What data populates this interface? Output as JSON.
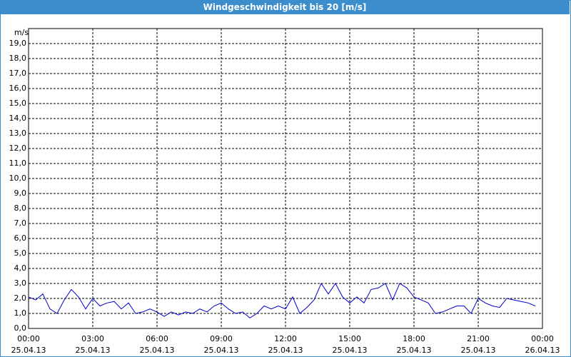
{
  "chart_data": {
    "type": "line",
    "title": "Windgeschwindigkeit bis 20 [m/s]",
    "y_label": "m/s",
    "x": [
      "2013-04-25T00:00",
      "2013-04-25T00:20",
      "2013-04-25T00:40",
      "2013-04-25T01:00",
      "2013-04-25T01:20",
      "2013-04-25T01:40",
      "2013-04-25T02:00",
      "2013-04-25T02:20",
      "2013-04-25T02:40",
      "2013-04-25T03:00",
      "2013-04-25T03:20",
      "2013-04-25T03:40",
      "2013-04-25T04:00",
      "2013-04-25T04:20",
      "2013-04-25T04:40",
      "2013-04-25T05:00",
      "2013-04-25T05:20",
      "2013-04-25T05:40",
      "2013-04-25T06:00",
      "2013-04-25T06:20",
      "2013-04-25T06:40",
      "2013-04-25T07:00",
      "2013-04-25T07:20",
      "2013-04-25T07:40",
      "2013-04-25T08:00",
      "2013-04-25T08:20",
      "2013-04-25T08:40",
      "2013-04-25T09:00",
      "2013-04-25T09:20",
      "2013-04-25T09:40",
      "2013-04-25T10:00",
      "2013-04-25T10:20",
      "2013-04-25T10:40",
      "2013-04-25T11:00",
      "2013-04-25T11:20",
      "2013-04-25T11:40",
      "2013-04-25T12:00",
      "2013-04-25T12:20",
      "2013-04-25T12:40",
      "2013-04-25T13:00",
      "2013-04-25T13:20",
      "2013-04-25T13:40",
      "2013-04-25T14:00",
      "2013-04-25T14:20",
      "2013-04-25T14:40",
      "2013-04-25T15:00",
      "2013-04-25T15:20",
      "2013-04-25T15:40",
      "2013-04-25T16:00",
      "2013-04-25T16:20",
      "2013-04-25T16:40",
      "2013-04-25T17:00",
      "2013-04-25T17:20",
      "2013-04-25T17:40",
      "2013-04-25T18:00",
      "2013-04-25T18:20",
      "2013-04-25T18:40",
      "2013-04-25T19:00",
      "2013-04-25T19:20",
      "2013-04-25T19:40",
      "2013-04-25T20:00",
      "2013-04-25T20:20",
      "2013-04-25T20:40",
      "2013-04-25T21:00",
      "2013-04-25T21:20",
      "2013-04-25T21:40",
      "2013-04-25T22:00",
      "2013-04-25T22:20",
      "2013-04-25T22:40",
      "2013-04-25T23:00",
      "2013-04-25T23:20",
      "2013-04-25T23:40"
    ],
    "series": [
      {
        "color": "#0000cc",
        "values": [
          2.1,
          1.9,
          2.3,
          1.3,
          1.0,
          1.9,
          2.6,
          2.1,
          1.3,
          2.0,
          1.5,
          1.7,
          1.8,
          1.3,
          1.7,
          1.0,
          1.1,
          1.3,
          1.1,
          0.8,
          1.1,
          0.9,
          1.1,
          1.0,
          1.3,
          1.1,
          1.5,
          1.7,
          1.3,
          1.0,
          1.1,
          0.7,
          1.0,
          1.5,
          1.3,
          1.5,
          1.3,
          2.1,
          1.0,
          1.4,
          1.9,
          3.0,
          2.3,
          3.0,
          2.1,
          1.7,
          2.1,
          1.7,
          2.6,
          2.7,
          3.0,
          1.9,
          3.0,
          2.7,
          2.1,
          1.9,
          1.7,
          1.0,
          1.1,
          1.3,
          1.5,
          1.5,
          1.0,
          2.0,
          1.7,
          1.5,
          1.4,
          2.0,
          1.9,
          1.8,
          1.7,
          1.5
        ]
      }
    ],
    "xlim": [
      "2013-04-25T00:00",
      "2013-04-26T00:00"
    ],
    "xticks": [
      {
        "value": "2013-04-25T00:00",
        "label": [
          "00:00",
          "25.04.13"
        ]
      },
      {
        "value": "2013-04-25T03:00",
        "label": [
          "03:00",
          "25.04.13"
        ]
      },
      {
        "value": "2013-04-25T06:00",
        "label": [
          "06:00",
          "25.04.13"
        ]
      },
      {
        "value": "2013-04-25T09:00",
        "label": [
          "09:00",
          "25.04.13"
        ]
      },
      {
        "value": "2013-04-25T12:00",
        "label": [
          "12:00",
          "25.04.13"
        ]
      },
      {
        "value": "2013-04-25T15:00",
        "label": [
          "15:00",
          "25.04.13"
        ]
      },
      {
        "value": "2013-04-25T18:00",
        "label": [
          "18:00",
          "25.04.13"
        ]
      },
      {
        "value": "2013-04-25T21:00",
        "label": [
          "21:00",
          "25.04.13"
        ]
      },
      {
        "value": "2013-04-26T00:00",
        "label": [
          "00:00",
          "26.04.13"
        ]
      }
    ],
    "ylim": [
      0,
      20
    ],
    "yticks": [
      {
        "value": 0,
        "label": "0,0"
      },
      {
        "value": 1,
        "label": "1,0"
      },
      {
        "value": 2,
        "label": "2,0"
      },
      {
        "value": 3,
        "label": "3,0"
      },
      {
        "value": 4,
        "label": "4,0"
      },
      {
        "value": 5,
        "label": "5,0"
      },
      {
        "value": 6,
        "label": "6,0"
      },
      {
        "value": 7,
        "label": "7,0"
      },
      {
        "value": 8,
        "label": "8,0"
      },
      {
        "value": 9,
        "label": "9,0"
      },
      {
        "value": 10,
        "label": "10,0"
      },
      {
        "value": 11,
        "label": "11,0"
      },
      {
        "value": 12,
        "label": "12,0"
      },
      {
        "value": 13,
        "label": "13,0"
      },
      {
        "value": 14,
        "label": "14,0"
      },
      {
        "value": 15,
        "label": "15,0"
      },
      {
        "value": 16,
        "label": "16,0"
      },
      {
        "value": 17,
        "label": "17,0"
      },
      {
        "value": 18,
        "label": "18,0"
      },
      {
        "value": 19,
        "label": "19,0"
      }
    ],
    "grid": true
  }
}
